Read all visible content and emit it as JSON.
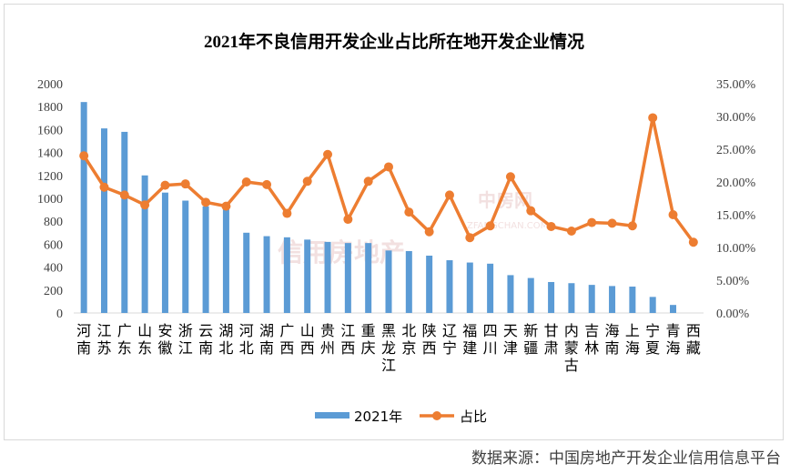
{
  "source_note": "数据来源：中国房地产开发企业信用信息平台",
  "watermarks": [
    "信用房地产",
    "中房网",
    "ZFANGCHAN.COM"
  ],
  "colors": {
    "bar": "#5b9bd5",
    "line": "#ed7d31",
    "axis_text": "#404040",
    "grid": "#d9d9d9"
  },
  "chart_data": {
    "type": "bar",
    "title": "2021年不良信用开发企业占比所在地开发企业情况",
    "categories": [
      "河南",
      "江苏",
      "广东",
      "山东",
      "安徽",
      "浙江",
      "云南",
      "湖北",
      "河北",
      "湖南",
      "广西",
      "山西",
      "贵州",
      "江西",
      "重庆",
      "黑龙江",
      "北京",
      "陕西",
      "辽宁",
      "福建",
      "四川",
      "天津",
      "新疆",
      "甘肃",
      "内蒙古",
      "吉林",
      "海南",
      "上海",
      "宁夏",
      "青海",
      "西藏"
    ],
    "series": [
      {
        "name": "2021年",
        "type": "bar",
        "axis": "left",
        "values": [
          1840,
          1610,
          1580,
          1200,
          1050,
          980,
          930,
          920,
          700,
          670,
          660,
          640,
          620,
          610,
          610,
          545,
          540,
          500,
          460,
          440,
          430,
          330,
          305,
          270,
          260,
          245,
          235,
          230,
          140,
          70,
          0
        ]
      },
      {
        "name": "占比",
        "type": "line",
        "axis": "right",
        "values": [
          24.0,
          19.2,
          18.0,
          16.5,
          19.5,
          19.7,
          16.9,
          16.3,
          20.0,
          19.6,
          15.2,
          20.1,
          24.2,
          14.3,
          20.1,
          22.3,
          15.4,
          12.4,
          18.0,
          11.5,
          13.3,
          20.8,
          15.6,
          13.2,
          12.5,
          13.8,
          13.7,
          13.3,
          29.8,
          15.0,
          10.8
        ]
      }
    ],
    "ylim_left": [
      0,
      2000
    ],
    "ylim_right": [
      0,
      35
    ],
    "yticks_left": [
      "0",
      "200",
      "400",
      "600",
      "800",
      "1000",
      "1200",
      "1400",
      "1600",
      "1800",
      "2000"
    ],
    "yticks_right": [
      "0.00%",
      "5.00%",
      "10.00%",
      "15.00%",
      "20.00%",
      "25.00%",
      "30.00%",
      "35.00%"
    ],
    "legend_position": "bottom",
    "grid": false
  }
}
